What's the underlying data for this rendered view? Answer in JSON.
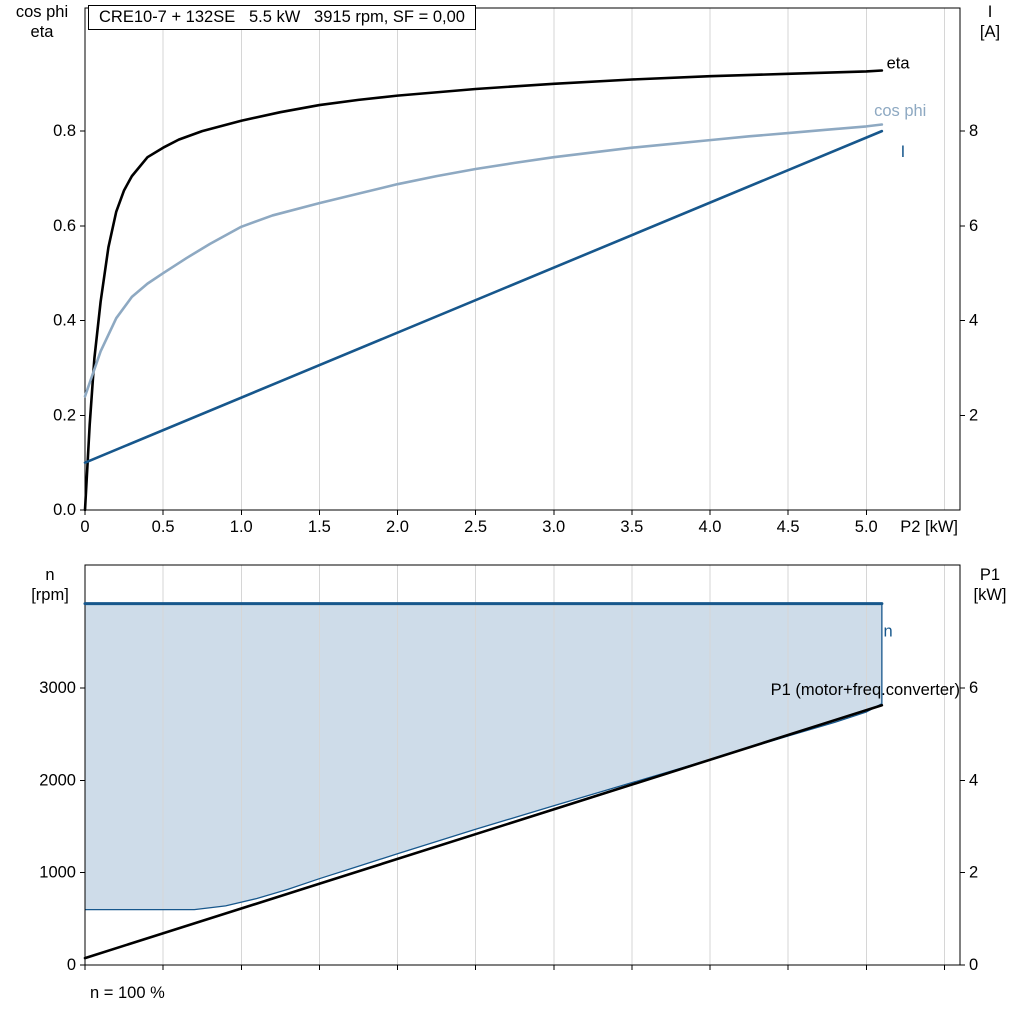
{
  "title_box": "CRE10-7 + 132SE   5.5 kW   3915 rpm, SF = 0,00",
  "footer_note": "n = 100 %",
  "colors": {
    "black": "#000000",
    "cos_phi": "#8EA9C2",
    "dark_blue": "#17578C",
    "fill": "#CEDCE9",
    "grid": "#D6D6D6"
  },
  "chart_data": [
    {
      "name": "motor-performance-chart",
      "type": "line",
      "x_range": [
        0,
        5.6
      ],
      "x_axis_label": "P2 [kW]",
      "x_tick_values": [
        0,
        0.5,
        1,
        1.5,
        2,
        2.5,
        3,
        3.5,
        4,
        4.5,
        5
      ],
      "x_tick_labels": [
        "0",
        "0.5",
        "1.0",
        "1.5",
        "2.0",
        "2.5",
        "3.0",
        "3.5",
        "4.0",
        "4.5",
        "5.0"
      ],
      "grid_x_values": [
        0.5,
        1,
        1.5,
        2,
        2.5,
        3,
        3.5,
        4,
        4.5,
        5,
        5.5
      ],
      "left_axis": {
        "title_lines": [
          "cos phi",
          "eta"
        ],
        "range": [
          0,
          1.06
        ],
        "tick_values": [
          0,
          0.2,
          0.4,
          0.6,
          0.8
        ],
        "tick_labels": [
          "0.0",
          "0.2",
          "0.4",
          "0.6",
          "0.8"
        ]
      },
      "right_axis": {
        "title_lines": [
          "I",
          "[A]"
        ],
        "range": [
          0,
          10.6
        ],
        "tick_values": [
          2,
          4,
          6,
          8
        ],
        "tick_labels": [
          "2",
          "4",
          "6",
          "8"
        ]
      },
      "series": [
        {
          "id": "eta",
          "label": "eta",
          "axis": "left",
          "color_key": "black",
          "width": 2.6,
          "label_pos": [
            5.13,
            0.932
          ],
          "points": [
            [
              0,
              0
            ],
            [
              0.03,
              0.18
            ],
            [
              0.06,
              0.32
            ],
            [
              0.1,
              0.44
            ],
            [
              0.15,
              0.555
            ],
            [
              0.2,
              0.63
            ],
            [
              0.25,
              0.675
            ],
            [
              0.3,
              0.705
            ],
            [
              0.4,
              0.745
            ],
            [
              0.5,
              0.765
            ],
            [
              0.6,
              0.782
            ],
            [
              0.75,
              0.8
            ],
            [
              1,
              0.822
            ],
            [
              1.25,
              0.84
            ],
            [
              1.5,
              0.855
            ],
            [
              1.75,
              0.866
            ],
            [
              2,
              0.875
            ],
            [
              2.5,
              0.889
            ],
            [
              3,
              0.9
            ],
            [
              3.5,
              0.909
            ],
            [
              4,
              0.916
            ],
            [
              4.5,
              0.921
            ],
            [
              5,
              0.926
            ],
            [
              5.1,
              0.928
            ]
          ]
        },
        {
          "id": "cos-phi",
          "label": "cos phi",
          "axis": "left",
          "color_key": "cos_phi",
          "width": 2.6,
          "label_pos": [
            5.05,
            0.832
          ],
          "points": [
            [
              0,
              0.24
            ],
            [
              0.1,
              0.335
            ],
            [
              0.2,
              0.405
            ],
            [
              0.3,
              0.45
            ],
            [
              0.4,
              0.478
            ],
            [
              0.5,
              0.5
            ],
            [
              0.65,
              0.532
            ],
            [
              0.8,
              0.562
            ],
            [
              1,
              0.598
            ],
            [
              1.2,
              0.622
            ],
            [
              1.5,
              0.648
            ],
            [
              1.75,
              0.668
            ],
            [
              2,
              0.688
            ],
            [
              2.25,
              0.705
            ],
            [
              2.5,
              0.72
            ],
            [
              2.75,
              0.733
            ],
            [
              3,
              0.745
            ],
            [
              3.25,
              0.755
            ],
            [
              3.5,
              0.765
            ],
            [
              3.75,
              0.773
            ],
            [
              4,
              0.781
            ],
            [
              4.25,
              0.789
            ],
            [
              4.5,
              0.796
            ],
            [
              4.75,
              0.803
            ],
            [
              5,
              0.81
            ],
            [
              5.1,
              0.814
            ]
          ]
        },
        {
          "id": "current",
          "label": "I",
          "axis": "right",
          "color_key": "dark_blue",
          "width": 2.6,
          "label_pos": [
            5.22,
            7.45
          ],
          "points": [
            [
              0,
              1
            ],
            [
              5.1,
              8
            ]
          ]
        }
      ]
    },
    {
      "name": "speed-power-chart",
      "type": "line",
      "x_range": [
        0,
        5.6
      ],
      "x_tick_values": [
        0,
        0.5,
        1,
        1.5,
        2,
        2.5,
        3,
        3.5,
        4,
        4.5,
        5,
        5.5
      ],
      "x_tick_labels": [],
      "grid_x_values": [
        0.5,
        1,
        1.5,
        2,
        2.5,
        3,
        3.5,
        4,
        4.5,
        5,
        5.5
      ],
      "left_axis": {
        "title_lines": [
          "n",
          "[rpm]"
        ],
        "range": [
          0,
          4333
        ],
        "tick_values": [
          0,
          1000,
          2000,
          3000
        ],
        "tick_labels": [
          "0",
          "1000",
          "2000",
          "3000"
        ]
      },
      "right_axis": {
        "title_lines": [
          "P1",
          "[kW]"
        ],
        "range": [
          0,
          8.67
        ],
        "tick_values": [
          0,
          2,
          4,
          6
        ],
        "tick_labels": [
          "0",
          "2",
          "4",
          "6"
        ]
      },
      "fill_region": {
        "axis": "left",
        "upper": 3915,
        "color_key": "fill",
        "edge_color_key": "dark_blue",
        "lower_points": [
          [
            0,
            600
          ],
          [
            0.7,
            600
          ],
          [
            0.9,
            640
          ],
          [
            1.1,
            720
          ],
          [
            1.3,
            820
          ],
          [
            1.5,
            935
          ],
          [
            1.75,
            1070
          ],
          [
            2,
            1205
          ],
          [
            2.5,
            1470
          ],
          [
            3,
            1725
          ],
          [
            3.5,
            1975
          ],
          [
            4,
            2225
          ],
          [
            4.5,
            2480
          ],
          [
            4.8,
            2630
          ],
          [
            5,
            2740
          ],
          [
            5.1,
            2830
          ]
        ]
      },
      "series": [
        {
          "id": "speed",
          "label": "n",
          "axis": "left",
          "color_key": "dark_blue",
          "width": 3,
          "label_pos": [
            5.11,
            3560
          ],
          "points": [
            [
              0,
              3915
            ],
            [
              5.1,
              3915
            ]
          ]
        },
        {
          "id": "p1",
          "label": "P1 (motor+freq.converter)",
          "axis": "right",
          "color_key": "black",
          "width": 2.6,
          "label_pos": [
            5.6,
            5.85
          ],
          "label_anchor": "end",
          "points": [
            [
              0,
              0.15
            ],
            [
              5.1,
              5.63
            ]
          ]
        }
      ]
    }
  ]
}
